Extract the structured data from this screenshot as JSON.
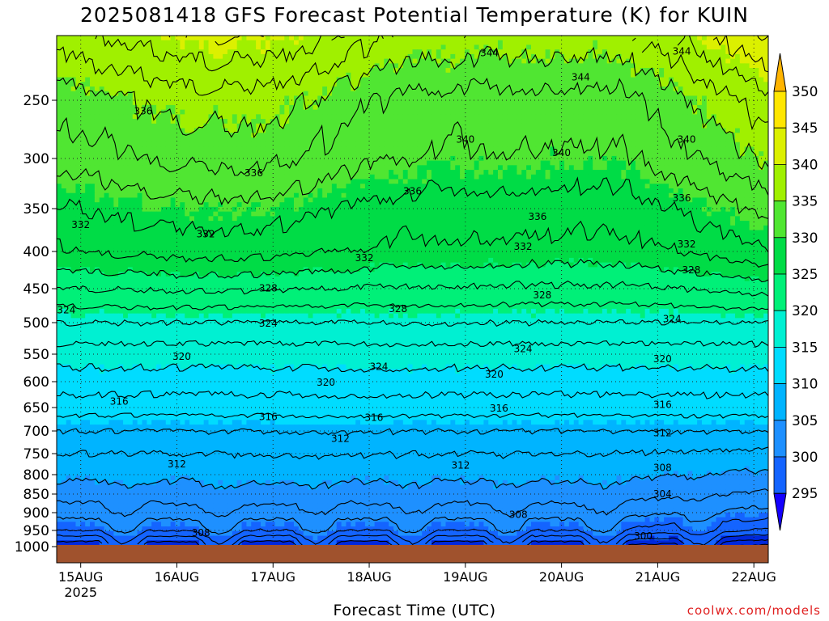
{
  "title": "2025081418 GFS Forecast Potential Temperature (K) for KUIN",
  "source": "coolwx.com/models",
  "chart_data": {
    "type": "heatmap",
    "title": "2025081418 GFS Forecast Potential Temperature (K) for KUIN",
    "xlabel": "Forecast Time (UTC)",
    "x_ticks": [
      "15AUG",
      "16AUG",
      "17AUG",
      "18AUG",
      "19AUG",
      "20AUG",
      "21AUG",
      "22AUG"
    ],
    "x_year": "2025",
    "x_range_days": [
      14.75,
      22.15
    ],
    "y_ticks": [
      250,
      300,
      350,
      400,
      450,
      500,
      550,
      600,
      650,
      700,
      750,
      800,
      850,
      900,
      950,
      1000
    ],
    "y_range": [
      200,
      1000
    ],
    "y_scale": "log",
    "y_inverted": true,
    "grid": true,
    "ground_color": "#a0522d",
    "colorbar": {
      "labels": [
        295,
        300,
        305,
        310,
        315,
        320,
        325,
        330,
        335,
        340,
        345,
        350
      ],
      "colors": [
        "#1400ff",
        "#0028dc",
        "#1464ff",
        "#1e90ff",
        "#00b4ff",
        "#00dcff",
        "#00f0d2",
        "#00f078",
        "#00dc46",
        "#50e632",
        "#a0f000",
        "#dcf000",
        "#ffe600",
        "#ffb400"
      ]
    },
    "profile": {
      "pressure": [
        1000,
        950,
        900,
        850,
        800,
        750,
        700,
        650,
        600,
        550,
        500,
        450,
        400,
        350,
        300,
        250,
        200
      ],
      "theta_K": [
        298,
        304,
        307,
        309,
        310.5,
        312,
        314,
        317,
        319,
        321,
        324,
        328,
        332,
        334,
        337,
        339,
        344
      ]
    },
    "contour_labels": [
      {
        "value": 344,
        "t": 19.25,
        "p": 215
      },
      {
        "value": 344,
        "t": 20.2,
        "p": 232
      },
      {
        "value": 344,
        "t": 21.25,
        "p": 214
      },
      {
        "value": 336,
        "t": 15.65,
        "p": 258
      },
      {
        "value": 340,
        "t": 19.0,
        "p": 282
      },
      {
        "value": 340,
        "t": 20.0,
        "p": 294
      },
      {
        "value": 340,
        "t": 21.3,
        "p": 282
      },
      {
        "value": 336,
        "t": 16.8,
        "p": 313
      },
      {
        "value": 336,
        "t": 18.45,
        "p": 331
      },
      {
        "value": 336,
        "t": 19.75,
        "p": 358
      },
      {
        "value": 336,
        "t": 21.25,
        "p": 338
      },
      {
        "value": 332,
        "t": 15.0,
        "p": 367
      },
      {
        "value": 332,
        "t": 16.3,
        "p": 378
      },
      {
        "value": 332,
        "t": 17.95,
        "p": 407
      },
      {
        "value": 332,
        "t": 19.6,
        "p": 393
      },
      {
        "value": 332,
        "t": 21.3,
        "p": 390
      },
      {
        "value": 328,
        "t": 21.35,
        "p": 423
      },
      {
        "value": 328,
        "t": 16.95,
        "p": 448
      },
      {
        "value": 328,
        "t": 18.3,
        "p": 478
      },
      {
        "value": 328,
        "t": 19.8,
        "p": 458
      },
      {
        "value": 324,
        "t": 14.85,
        "p": 480
      },
      {
        "value": 324,
        "t": 16.95,
        "p": 500
      },
      {
        "value": 324,
        "t": 18.1,
        "p": 571
      },
      {
        "value": 324,
        "t": 19.6,
        "p": 540
      },
      {
        "value": 324,
        "t": 21.15,
        "p": 493
      },
      {
        "value": 320,
        "t": 16.05,
        "p": 553
      },
      {
        "value": 320,
        "t": 17.55,
        "p": 600
      },
      {
        "value": 320,
        "t": 19.3,
        "p": 585
      },
      {
        "value": 320,
        "t": 21.05,
        "p": 557
      },
      {
        "value": 316,
        "t": 15.4,
        "p": 636
      },
      {
        "value": 316,
        "t": 16.95,
        "p": 668
      },
      {
        "value": 316,
        "t": 18.05,
        "p": 669
      },
      {
        "value": 316,
        "t": 19.35,
        "p": 650
      },
      {
        "value": 316,
        "t": 21.05,
        "p": 643
      },
      {
        "value": 312,
        "t": 17.7,
        "p": 715
      },
      {
        "value": 312,
        "t": 21.05,
        "p": 703
      },
      {
        "value": 312,
        "t": 16.0,
        "p": 773
      },
      {
        "value": 312,
        "t": 18.95,
        "p": 776
      },
      {
        "value": 308,
        "t": 21.05,
        "p": 781
      },
      {
        "value": 304,
        "t": 21.05,
        "p": 848
      },
      {
        "value": 308,
        "t": 19.55,
        "p": 903
      },
      {
        "value": 308,
        "t": 16.25,
        "p": 955
      },
      {
        "value": 300,
        "t": 20.85,
        "p": 965
      }
    ]
  }
}
